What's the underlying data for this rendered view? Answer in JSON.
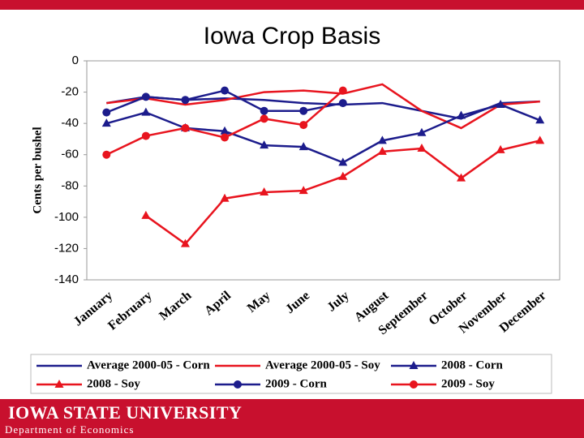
{
  "chart_data": {
    "type": "line",
    "title": "Iowa Crop Basis",
    "y_label": "Cents per bushel",
    "categories": [
      "January",
      "February",
      "March",
      "April",
      "May",
      "June",
      "July",
      "August",
      "September",
      "October",
      "November",
      "December"
    ],
    "series": [
      {
        "name": "Average 2000-05 - Corn",
        "color": "#1c1c8c",
        "marker": "none",
        "values": [
          -27,
          -23,
          -25,
          -24,
          -25,
          -27,
          -28,
          -27,
          -32,
          -37,
          -27,
          -26
        ]
      },
      {
        "name": "Average 2000-05 - Soy",
        "color": "#e8141e",
        "marker": "none",
        "values": [
          -27,
          -24,
          -28,
          -25,
          -20,
          -19,
          -21,
          -15,
          -32,
          -43,
          -28,
          -26
        ]
      },
      {
        "name": "2008 - Corn",
        "color": "#1c1c8c",
        "marker": "triangle",
        "values": [
          -40,
          -33,
          -43,
          -45,
          -54,
          -55,
          -65,
          -51,
          -46,
          -35,
          -28,
          -38
        ]
      },
      {
        "name": "2008 - Soy",
        "color": "#e8141e",
        "marker": "triangle",
        "values": [
          null,
          -99,
          -117,
          -88,
          -84,
          -83,
          -74,
          -58,
          -56,
          -75,
          -57,
          -51
        ]
      },
      {
        "name": "2009 - Corn",
        "color": "#1c1c8c",
        "marker": "circle",
        "values": [
          -33,
          -23,
          -25,
          -19,
          -32,
          -32,
          -27,
          null,
          null,
          null,
          null,
          null
        ]
      },
      {
        "name": "2009 - Soy",
        "color": "#e8141e",
        "marker": "circle",
        "values": [
          -60,
          -48,
          -43,
          -49,
          -37,
          -41,
          -19,
          null,
          null,
          null,
          null,
          null
        ]
      }
    ],
    "ylim": [
      -140,
      0
    ],
    "yticks": [
      0,
      -20,
      -40,
      -60,
      -80,
      -100,
      -120,
      -140
    ],
    "grid": false
  },
  "footer": {
    "university": "IOWA STATE UNIVERSITY",
    "department": "Department of Economics"
  }
}
